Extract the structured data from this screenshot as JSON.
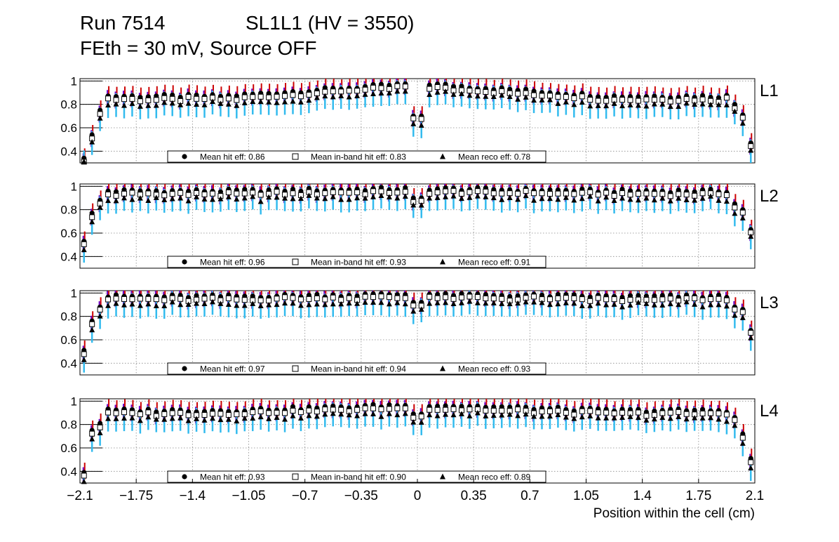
{
  "title": {
    "run": "Run 7514",
    "chamber": "SL1L1 (HV = 3550)",
    "config": "FEth = 30 mV, Source OFF"
  },
  "colors": {
    "hit_err": "#cc0000",
    "inband_err": "#6a00c8",
    "reco_err": "#33bbee",
    "marker": "#000000",
    "grid": "#888888"
  },
  "chart_data": {
    "type": "scatter",
    "xlabel": "Position within the cell (cm)",
    "xlim": [
      -2.1,
      2.1
    ],
    "ylim": [
      0.3,
      1.02
    ],
    "x_tick_labels": [
      "−2.1",
      "−1.75",
      "−1.4",
      "−1.05",
      "−0.7",
      "−0.35",
      "0",
      "0.35",
      "0.7",
      "1.05",
      "1.4",
      "1.75",
      "2.1"
    ],
    "x_tick_values": [
      -2.1,
      -1.75,
      -1.4,
      -1.05,
      -0.7,
      -0.35,
      0,
      0.35,
      0.7,
      1.05,
      1.4,
      1.75,
      2.1
    ],
    "y_tick_labels": [
      "0.4",
      "0.6",
      "0.8",
      "1"
    ],
    "y_tick_values": [
      0.4,
      0.6,
      0.8,
      1.0
    ],
    "n_bins": 84,
    "series_names": [
      "Mean hit  eff",
      "Mean in-band hit eff",
      "Mean reco eff"
    ],
    "panels": [
      {
        "layer": "L1",
        "legend": [
          "Mean hit  eff: 0.86",
          "Mean in-band hit eff: 0.83",
          "Mean reco eff: 0.78"
        ],
        "profile": {
          "edge_left": [
            0.34,
            0.54,
            0.75
          ],
          "edge_right": [
            0.8,
            0.71,
            0.47
          ],
          "base": 0.87,
          "peak": 0.98,
          "dip_at_zero": 0.7
        }
      },
      {
        "layer": "L2",
        "legend": [
          "Mean hit  eff: 0.96",
          "Mean in-band hit eff: 0.93",
          "Mean reco eff: 0.91"
        ],
        "profile": {
          "edge_left": [
            0.53,
            0.77,
            0.88
          ],
          "edge_right": [
            0.85,
            0.8,
            0.63
          ],
          "base": 0.96,
          "peak": 0.98,
          "dip_at_zero": 0.9
        }
      },
      {
        "layer": "L3",
        "legend": [
          "Mean hit  eff: 0.97",
          "Mean in-band hit eff: 0.94",
          "Mean reco eff: 0.93"
        ],
        "profile": {
          "edge_left": [
            0.51,
            0.76,
            0.88
          ],
          "edge_right": [
            0.88,
            0.86,
            0.68
          ],
          "base": 0.97,
          "peak": 0.99,
          "dip_at_zero": 0.92
        }
      },
      {
        "layer": "L4",
        "legend": [
          "Mean hit  eff: 0.93",
          "Mean in-band hit eff: 0.90",
          "Mean reco eff: 0.89"
        ],
        "profile": {
          "edge_left": [
            0.39,
            0.75,
            0.81
          ],
          "edge_right": [
            0.86,
            0.72,
            0.51
          ],
          "base": 0.92,
          "peak": 0.97,
          "dip_at_zero": 0.89
        }
      }
    ]
  }
}
